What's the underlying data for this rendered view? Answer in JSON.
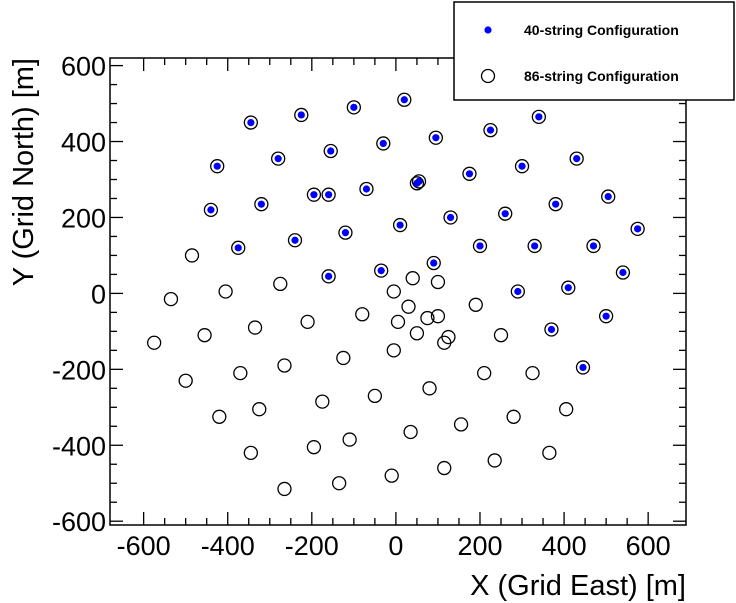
{
  "chart_data": {
    "type": "scatter",
    "title": "",
    "xlabel": "X (Grid East) [m]",
    "ylabel": "Y (Grid North) [m]",
    "xlim": [
      -680,
      690
    ],
    "ylim": [
      -610,
      620
    ],
    "xticks": [
      -600,
      -400,
      -200,
      0,
      200,
      400,
      600
    ],
    "yticks": [
      -600,
      -400,
      -200,
      0,
      200,
      400,
      600
    ],
    "xtick_labels": [
      "-600",
      "-400",
      "-200",
      "0",
      "200",
      "400",
      "600"
    ],
    "ytick_labels": [
      "-600",
      "-400",
      "-200",
      "0",
      "200",
      "400",
      "600"
    ],
    "grid": false,
    "legend": {
      "position": "top-right",
      "entries": [
        "40-string Configuration",
        "86-string Configuration"
      ]
    },
    "colors": {
      "series_40": "#0000ff",
      "series_86": "#000000"
    },
    "series": [
      {
        "name": "40-string Configuration",
        "marker": "filled-circle",
        "x": [
          -345,
          -225,
          -100,
          20,
          340,
          -280,
          -155,
          -30,
          95,
          225,
          -425,
          -160,
          -70,
          50,
          175,
          300,
          430,
          -320,
          -195,
          55,
          260,
          380,
          505,
          -440,
          -375,
          -240,
          -120,
          10,
          130,
          200,
          330,
          470,
          575,
          -160,
          -35,
          90,
          290,
          410,
          540,
          370,
          500,
          445
        ],
        "y": [
          450,
          470,
          490,
          510,
          465,
          355,
          375,
          395,
          410,
          430,
          335,
          260,
          275,
          290,
          315,
          335,
          355,
          235,
          260,
          295,
          210,
          235,
          255,
          220,
          120,
          140,
          160,
          180,
          200,
          125,
          125,
          125,
          170,
          45,
          60,
          80,
          5,
          15,
          55,
          -95,
          -60,
          -195
        ]
      },
      {
        "name": "86-string Configuration",
        "marker": "open-circle",
        "x": [
          -345,
          -225,
          -100,
          20,
          340,
          -280,
          -155,
          -30,
          95,
          225,
          -425,
          -160,
          -70,
          50,
          175,
          300,
          430,
          -320,
          -195,
          55,
          260,
          380,
          505,
          -440,
          -375,
          -240,
          -120,
          10,
          130,
          200,
          330,
          470,
          575,
          -160,
          -35,
          90,
          290,
          410,
          540,
          370,
          500,
          445,
          -485,
          -535,
          -405,
          -575,
          -455,
          -335,
          -275,
          -210,
          -80,
          100,
          190,
          -5,
          100,
          40,
          30,
          5,
          75,
          -5,
          50,
          115,
          125,
          250,
          -125,
          -370,
          -265,
          -500,
          -325,
          -420,
          -175,
          -50,
          80,
          210,
          325,
          -195,
          -345,
          -110,
          -265,
          35,
          280,
          405,
          365,
          155,
          -135,
          -10,
          115,
          235
        ],
        "y": [
          450,
          470,
          490,
          510,
          465,
          355,
          375,
          395,
          410,
          430,
          335,
          260,
          275,
          290,
          315,
          335,
          355,
          235,
          260,
          295,
          210,
          235,
          255,
          220,
          120,
          140,
          160,
          180,
          200,
          125,
          125,
          125,
          170,
          45,
          60,
          80,
          5,
          15,
          55,
          -95,
          -60,
          -195,
          100,
          -15,
          5,
          -130,
          -110,
          -90,
          25,
          -75,
          -55,
          30,
          -30,
          5,
          -60,
          40,
          -35,
          -75,
          -65,
          -150,
          -105,
          -130,
          -115,
          -110,
          -170,
          -210,
          -190,
          -230,
          -305,
          -325,
          -285,
          -270,
          -250,
          -210,
          -210,
          -405,
          -420,
          -385,
          -515,
          -365,
          -325,
          -305,
          -420,
          -345,
          -500,
          -480,
          -460,
          -440
        ]
      }
    ]
  }
}
